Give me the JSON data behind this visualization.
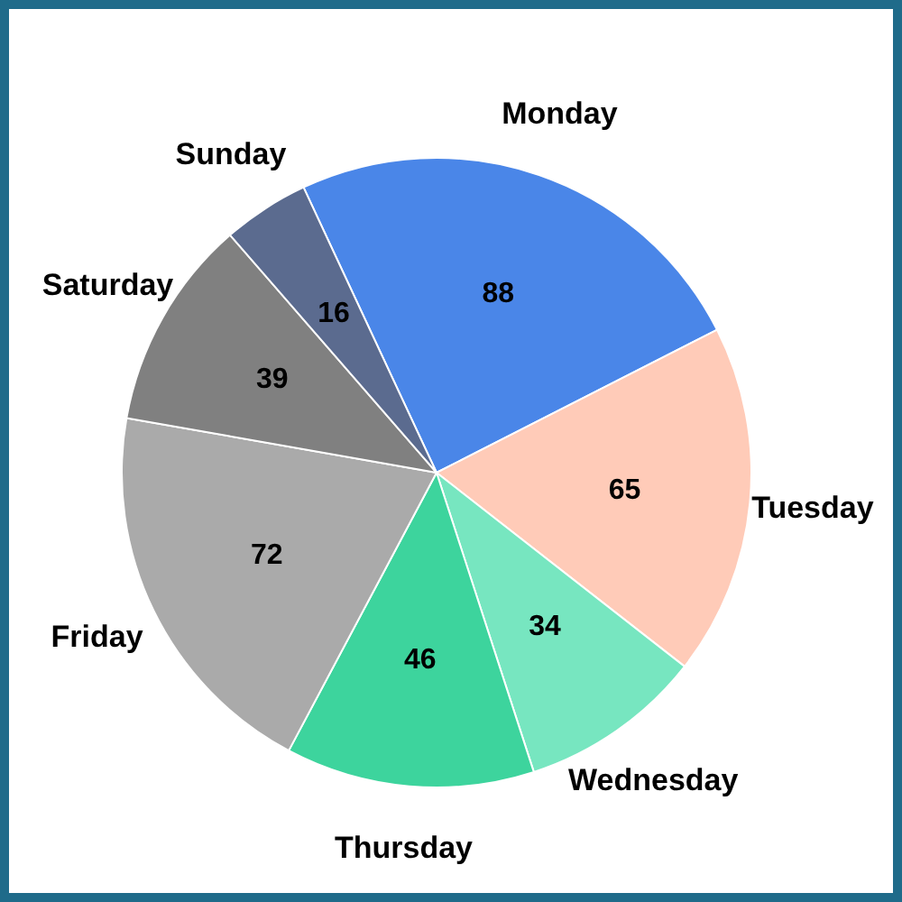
{
  "chart_data": {
    "type": "pie",
    "categories": [
      "Monday",
      "Tuesday",
      "Wednesday",
      "Thursday",
      "Friday",
      "Saturday",
      "Sunday"
    ],
    "values": [
      88,
      65,
      34,
      46,
      72,
      39,
      16
    ],
    "colors": [
      "#4a86e8",
      "#ffcbb8",
      "#77e6c0",
      "#3dd49d",
      "#aaaaaa",
      "#808080",
      "#5b6b8f"
    ],
    "data_labels": true,
    "legend": false
  }
}
